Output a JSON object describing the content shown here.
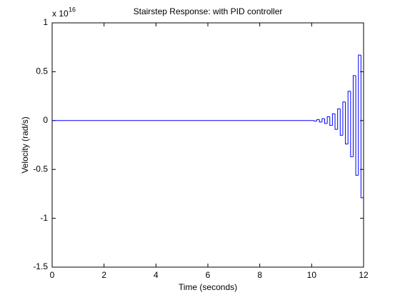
{
  "chart_data": {
    "type": "stairs",
    "title": "Stairstep Response: with PID controller",
    "xlabel": "Time (seconds)",
    "ylabel": "Velocity (rad/s)",
    "exponent_base": "x 10",
    "exponent_power": "16",
    "x": [
      0,
      10.0,
      10.1,
      10.2,
      10.3,
      10.4,
      10.5,
      10.6,
      10.7,
      10.8,
      10.9,
      11.0,
      11.1,
      11.2,
      11.3,
      11.4,
      11.5,
      11.6,
      11.7,
      11.8,
      11.9,
      12.0
    ],
    "series": [
      {
        "name": "Velocity",
        "color": "#0000ff",
        "values": [
          0,
          0,
          -0.005,
          0.01,
          -0.015,
          0.02,
          -0.03,
          0.04,
          -0.05,
          0.07,
          -0.09,
          0.12,
          -0.15,
          0.19,
          -0.24,
          0.3,
          -0.37,
          0.46,
          -0.56,
          0.67,
          -0.79,
          0.92
        ]
      }
    ],
    "xlim": [
      0,
      12
    ],
    "xticks": [
      0,
      2,
      4,
      6,
      8,
      10,
      12
    ],
    "ylim": [
      -1.5,
      1
    ],
    "yticks": [
      -1.5,
      -1,
      -0.5,
      0,
      0.5,
      1
    ],
    "grid": false
  }
}
